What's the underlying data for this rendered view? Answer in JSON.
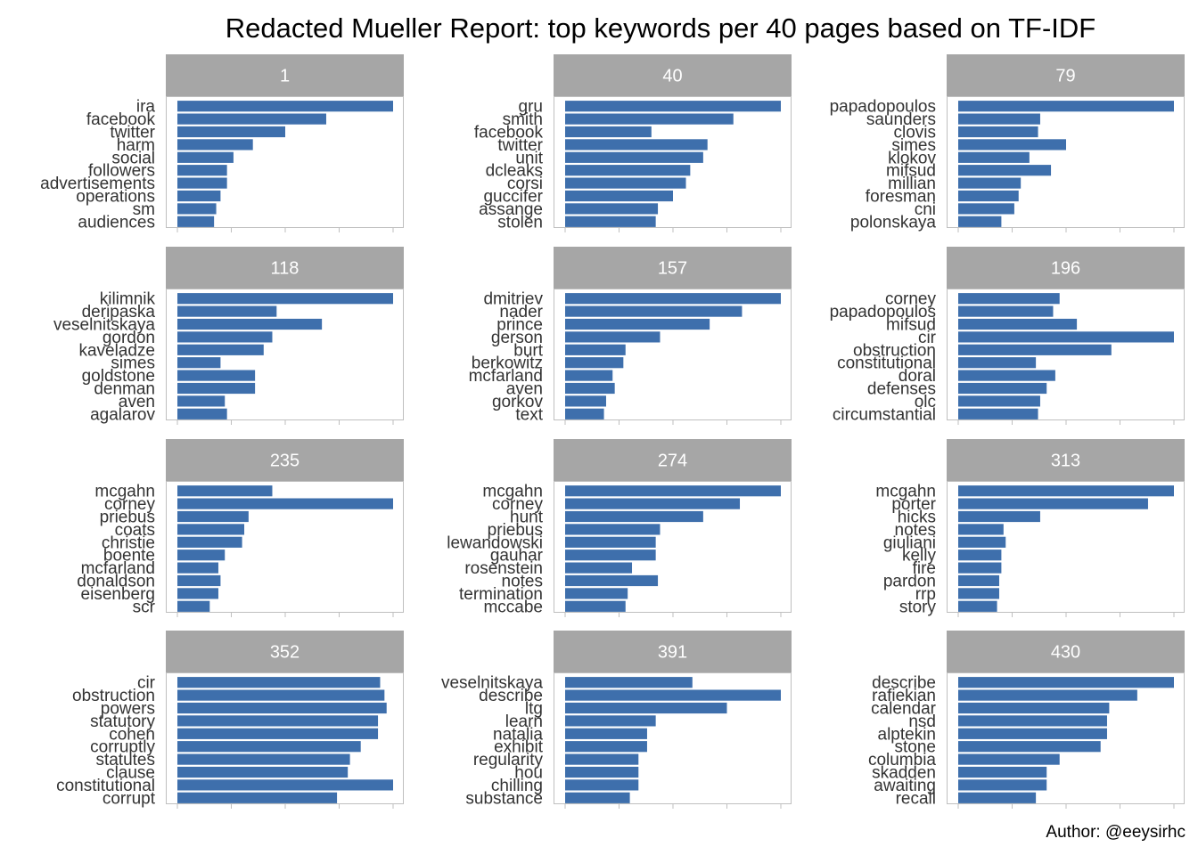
{
  "title": "Redacted Mueller Report: top keywords per 40 pages based on TF-IDF",
  "caption": "Author: @eeysirhc",
  "colors": {
    "bar": "#3E6FAC",
    "strip": "#A6A6A6",
    "panel_border": "#BFBFBF",
    "tick": "#BFBFBF"
  },
  "chart_data": [
    {
      "type": "bar",
      "orientation": "horizontal",
      "title": "1",
      "categories": [
        "ira",
        "facebook",
        "twitter",
        "harm",
        "social",
        "followers",
        "advertisements",
        "operations",
        "sm",
        "audiences"
      ],
      "values": [
        1.0,
        0.69,
        0.5,
        0.35,
        0.26,
        0.23,
        0.23,
        0.2,
        0.18,
        0.17
      ]
    },
    {
      "type": "bar",
      "orientation": "horizontal",
      "title": "40",
      "categories": [
        "gru",
        "smith",
        "facebook",
        "twitter",
        "unit",
        "dcleaks",
        "corsi",
        "guccifer",
        "assange",
        "stolen"
      ],
      "values": [
        1.0,
        0.78,
        0.4,
        0.66,
        0.64,
        0.58,
        0.56,
        0.5,
        0.43,
        0.42
      ]
    },
    {
      "type": "bar",
      "orientation": "horizontal",
      "title": "79",
      "categories": [
        "papadopoulos",
        "saunders",
        "clovis",
        "simes",
        "klokov",
        "mifsud",
        "millian",
        "foresman",
        "cni",
        "polonskaya"
      ],
      "values": [
        1.0,
        0.38,
        0.37,
        0.5,
        0.33,
        0.43,
        0.29,
        0.28,
        0.26,
        0.2
      ]
    },
    {
      "type": "bar",
      "orientation": "horizontal",
      "title": "118",
      "categories": [
        "kilimnik",
        "deripaska",
        "veselnitskaya",
        "gordon",
        "kaveladze",
        "simes",
        "goldstone",
        "denman",
        "aven",
        "agalarov"
      ],
      "values": [
        1.0,
        0.46,
        0.67,
        0.44,
        0.4,
        0.2,
        0.36,
        0.36,
        0.22,
        0.23
      ]
    },
    {
      "type": "bar",
      "orientation": "horizontal",
      "title": "157",
      "categories": [
        "dmitriev",
        "nader",
        "prince",
        "gerson",
        "burt",
        "berkowitz",
        "mcfarland",
        "aven",
        "gorkov",
        "text"
      ],
      "values": [
        1.0,
        0.82,
        0.67,
        0.44,
        0.28,
        0.27,
        0.22,
        0.23,
        0.19,
        0.18
      ]
    },
    {
      "type": "bar",
      "orientation": "horizontal",
      "title": "196",
      "categories": [
        "corney",
        "papadopoulos",
        "mifsud",
        "cir",
        "obstruction",
        "constitutional",
        "doral",
        "defenses",
        "olc",
        "circumstantial"
      ],
      "values": [
        0.47,
        0.44,
        0.55,
        1.0,
        0.71,
        0.36,
        0.45,
        0.41,
        0.38,
        0.37
      ]
    },
    {
      "type": "bar",
      "orientation": "horizontal",
      "title": "235",
      "categories": [
        "mcgahn",
        "corney",
        "priebus",
        "coats",
        "christie",
        "boente",
        "mcfarland",
        "donaldson",
        "eisenberg",
        "scr"
      ],
      "values": [
        0.44,
        1.0,
        0.33,
        0.31,
        0.3,
        0.22,
        0.19,
        0.2,
        0.19,
        0.15
      ]
    },
    {
      "type": "bar",
      "orientation": "horizontal",
      "title": "274",
      "categories": [
        "mcgahn",
        "corney",
        "hunt",
        "priebus",
        "lewandowski",
        "gauhar",
        "rosenstein",
        "notes",
        "termination",
        "mccabe"
      ],
      "values": [
        1.0,
        0.81,
        0.64,
        0.44,
        0.42,
        0.42,
        0.31,
        0.43,
        0.29,
        0.28
      ]
    },
    {
      "type": "bar",
      "orientation": "horizontal",
      "title": "313",
      "categories": [
        "mcgahn",
        "porter",
        "hicks",
        "notes",
        "giuliani",
        "kelly",
        "fire",
        "pardon",
        "rrp",
        "story"
      ],
      "values": [
        1.0,
        0.88,
        0.38,
        0.21,
        0.22,
        0.2,
        0.2,
        0.19,
        0.19,
        0.18
      ]
    },
    {
      "type": "bar",
      "orientation": "horizontal",
      "title": "352",
      "categories": [
        "cir",
        "obstruction",
        "powers",
        "statutory",
        "cohen",
        "corruptly",
        "statutes",
        "clause",
        "constitutional",
        "corrupt"
      ],
      "values": [
        0.94,
        0.96,
        0.97,
        0.93,
        0.93,
        0.85,
        0.8,
        0.79,
        1.0,
        0.74
      ]
    },
    {
      "type": "bar",
      "orientation": "horizontal",
      "title": "391",
      "categories": [
        "veselnitskaya",
        "describe",
        "ltg",
        "learn",
        "natalia",
        "exhibit",
        "regularity",
        "hou",
        "chilling",
        "substance"
      ],
      "values": [
        0.59,
        1.0,
        0.75,
        0.42,
        0.38,
        0.38,
        0.34,
        0.34,
        0.34,
        0.3
      ]
    },
    {
      "type": "bar",
      "orientation": "horizontal",
      "title": "430",
      "categories": [
        "describe",
        "rafiekian",
        "calendar",
        "nsd",
        "alptekin",
        "stone",
        "columbia",
        "skadden",
        "awaiting",
        "recall"
      ],
      "values": [
        1.0,
        0.83,
        0.7,
        0.69,
        0.69,
        0.66,
        0.47,
        0.41,
        0.41,
        0.36
      ]
    }
  ]
}
